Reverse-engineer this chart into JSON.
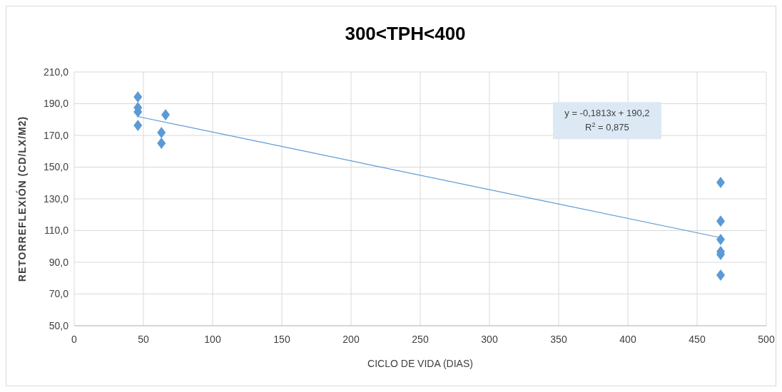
{
  "chart_data": {
    "type": "scatter",
    "title": "300<TPH<400",
    "xlabel": "CICLO DE VIDA (DIAS)",
    "ylabel": "RETORREFLEXIÓN (CD/LX/M2)",
    "annotations": [
      "y = -0,1813x + 190,2",
      "R$^{2}$ = 0,875"
    ],
    "series": [
      {
        "color": "#5b9bd5",
        "marker": "diamond",
        "x": [
          46,
          46,
          46,
          46,
          63,
          63,
          66,
          467,
          467,
          467,
          467,
          467,
          467
        ],
        "values": [
          194.3,
          187.5,
          184.8,
          176.3,
          171.8,
          165.1,
          183,
          140.3,
          116,
          104.4,
          96.7,
          94.9,
          81.9
        ]
      },
      {
        "type": "line",
        "marker": "none",
        "color": "#5b9bd5",
        "x": [
          46,
          467
        ],
        "values": [
          181.9,
          105.5
        ]
      }
    ],
    "xlim": [
      0,
      500
    ],
    "xticks": [
      0,
      50,
      100,
      150,
      200,
      250,
      300,
      350,
      400,
      450,
      500
    ],
    "ylim": [
      50,
      210
    ],
    "yticks": [
      {
        "value": 50,
        "label": "50,0"
      },
      {
        "value": 70,
        "label": "70,0"
      },
      {
        "value": 90,
        "label": "90,0"
      },
      {
        "value": 110,
        "label": "110,0"
      },
      {
        "value": 130,
        "label": "130,0"
      },
      {
        "value": 150,
        "label": "150,0"
      },
      {
        "value": 170,
        "label": "170,0"
      },
      {
        "value": 190,
        "label": "190,0"
      },
      {
        "value": 210,
        "label": "210,0"
      }
    ],
    "grid": true
  }
}
